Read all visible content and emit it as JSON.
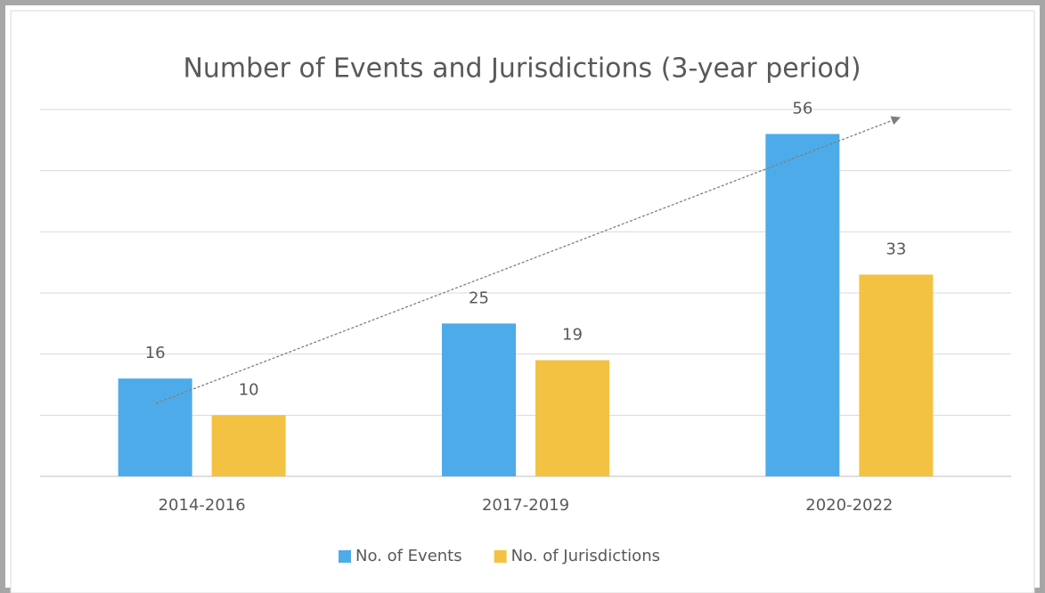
{
  "chart_data": {
    "type": "bar",
    "title": "Number of Events and Jurisdictions (3-year period)",
    "categories": [
      "2014-2016",
      "2017-2019",
      "2020-2022"
    ],
    "series": [
      {
        "name": "No. of Events",
        "color": "#4eabe9",
        "values": [
          16,
          25,
          56
        ]
      },
      {
        "name": "No. of Jurisdictions",
        "color": "#f4c242",
        "values": [
          10,
          19,
          33
        ]
      }
    ],
    "ylim": [
      0,
      60
    ],
    "yticks": [
      0,
      10,
      20,
      30,
      40,
      50,
      60
    ],
    "grid": true,
    "legend": "bottom"
  }
}
